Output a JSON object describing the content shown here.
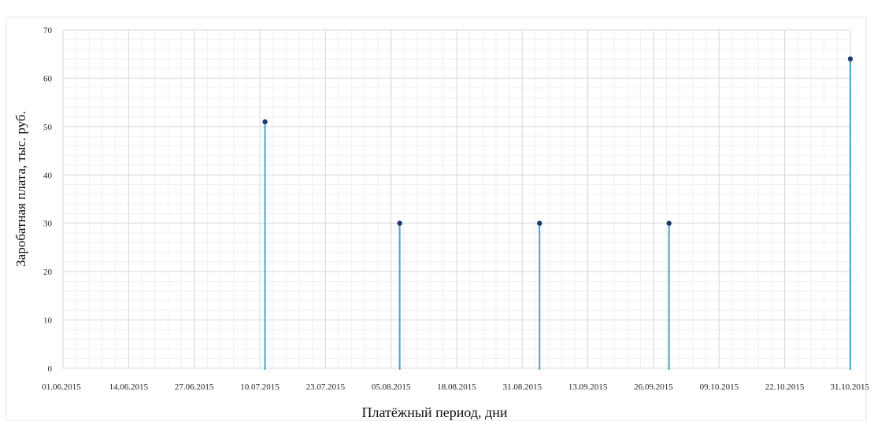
{
  "chart_data": {
    "type": "stem",
    "title": "",
    "xlabel": "Платёжный период, дни",
    "ylabel": "Заробатная плата, тыс. руб.",
    "ylim": [
      0,
      70
    ],
    "yticks": [
      "0",
      "10",
      "20",
      "30",
      "40",
      "50",
      "60",
      "70"
    ],
    "xlim": [
      "2015-06-01",
      "2015-10-31"
    ],
    "xticks": [
      "01.06.2015",
      "14.06.2015",
      "27.06.2015",
      "10.07.2015",
      "23.07.2015",
      "05.08.2015",
      "18.08.2015",
      "31.08.2015",
      "13.09.2015",
      "26.09.2015",
      "09.10.2015",
      "22.10.2015",
      "31.10.2015"
    ],
    "grid": true,
    "points": [
      {
        "x": "2015-07-10",
        "y": 51
      },
      {
        "x": "2015-08-05",
        "y": 30
      },
      {
        "x": "2015-09-01",
        "y": 30
      },
      {
        "x": "2015-09-26",
        "y": 30
      },
      {
        "x": "2015-10-31",
        "y": 64
      }
    ],
    "colors": {
      "stem": "#4aa8c8",
      "marker": "#1b3a6b",
      "grid_major": "#d9d9d9",
      "grid_minor": "#efefef"
    }
  }
}
